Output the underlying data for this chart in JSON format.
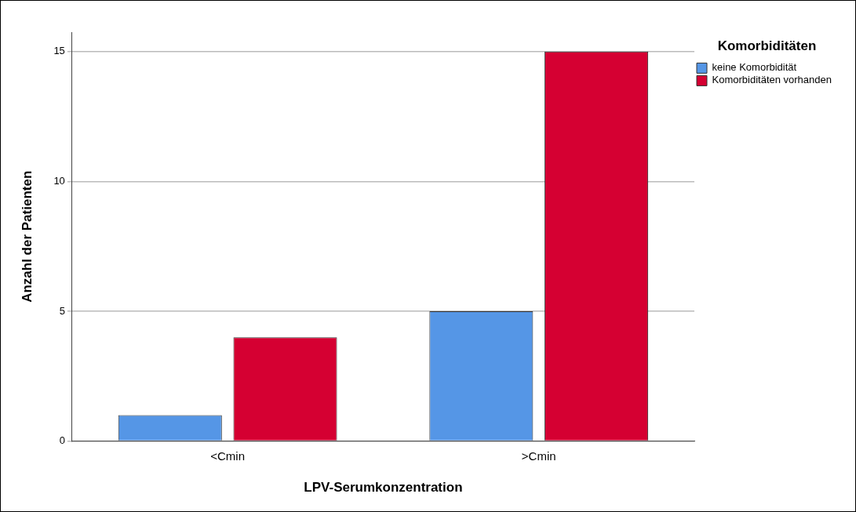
{
  "chart_data": {
    "type": "bar",
    "xlabel": "LPV-Serumkonzentration",
    "ylabel": "Anzahl der Patienten",
    "legend_title": "Komorbiditäten",
    "categories": [
      "<Cmin",
      ">Cmin"
    ],
    "series": [
      {
        "name": "keine Komorbidität",
        "color": "#5596e6",
        "values": [
          1,
          5
        ]
      },
      {
        "name": "Komorbiditäten vorhanden",
        "color": "#d50032",
        "values": [
          4,
          15
        ]
      }
    ],
    "ylim": [
      0,
      15.75
    ],
    "yticks": [
      0,
      5,
      10,
      15
    ],
    "grid": "y",
    "legend": "top right"
  }
}
